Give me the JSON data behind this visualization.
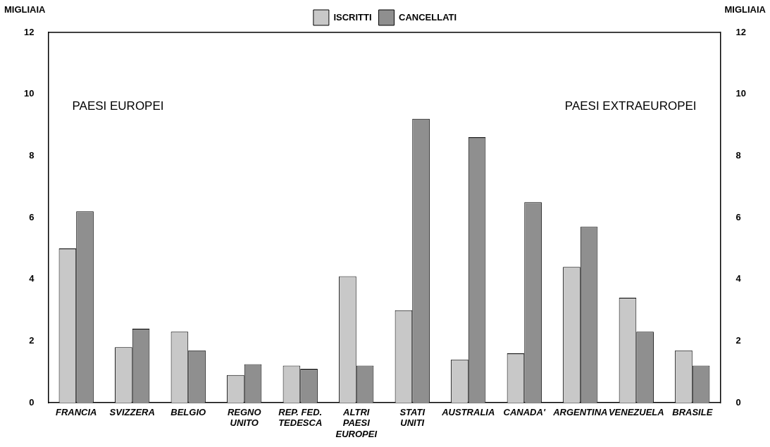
{
  "chart_data": {
    "type": "bar",
    "categories": [
      "FRANCIA",
      "SVIZZERA",
      "BELGIO",
      "REGNO\nUNITO",
      "REP. FED.\nTEDESCA",
      "ALTRI\nPAESI\nEUROPEI",
      "STATI\nUNITI",
      "AUSTRALIA",
      "CANADA'",
      "ARGENTINA",
      "VENEZUELA",
      "BRASILE"
    ],
    "series": [
      {
        "name": "ISCRITTI",
        "color": "#c8c8c8",
        "values": [
          5.0,
          1.8,
          2.3,
          0.9,
          1.2,
          4.1,
          3.0,
          1.4,
          1.6,
          4.4,
          3.4,
          1.7
        ]
      },
      {
        "name": "CANCELLATI",
        "color": "#8f8f8f",
        "values": [
          6.2,
          2.4,
          1.7,
          1.25,
          1.1,
          1.2,
          9.2,
          8.6,
          6.5,
          5.7,
          2.3,
          1.2
        ]
      }
    ],
    "ylabel": "MIGLIAIA",
    "y2label": "MIGLIAIA",
    "ylim": [
      0,
      12
    ],
    "yticks": [
      0,
      2,
      4,
      6,
      8,
      10,
      12
    ],
    "y2lim": [
      0,
      12
    ],
    "y2ticks": [
      0,
      2,
      4,
      6,
      8,
      10,
      12
    ],
    "annotations": [
      "PAESI EUROPEI",
      "PAESI EXTRAEUROPEI"
    ],
    "grid": false,
    "legend": "top"
  }
}
